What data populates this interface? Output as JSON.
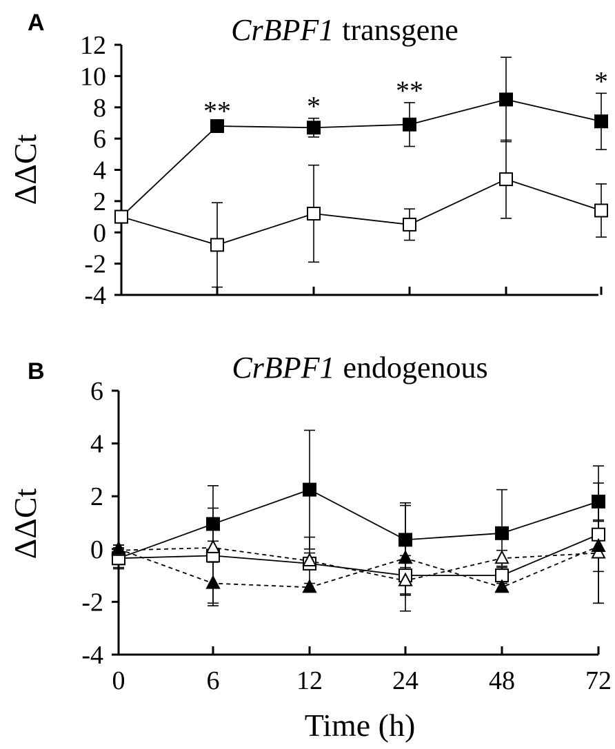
{
  "chart_data": [
    {
      "type": "line",
      "panel_label": "A",
      "title_gene": "CrBPF1",
      "title_suffix": "transgene",
      "ylabel": "ΔΔCt",
      "xlabel": "",
      "categories": [
        "0",
        "6",
        "12",
        "24",
        "48",
        "72"
      ],
      "ylim": [
        -4,
        12
      ],
      "yticks": [
        12,
        10,
        8,
        6,
        4,
        2,
        0,
        -2,
        -4
      ],
      "series": [
        {
          "name": "filled-square",
          "marker": "square-filled",
          "dashed": false,
          "values": [
            1.0,
            6.8,
            6.7,
            6.9,
            8.5,
            7.1
          ],
          "errors": [
            0.2,
            0.2,
            0.6,
            1.4,
            2.7,
            1.8
          ]
        },
        {
          "name": "open-square",
          "marker": "square-open",
          "dashed": false,
          "values": [
            1.0,
            -0.8,
            1.2,
            0.5,
            3.4,
            1.4
          ],
          "errors": [
            0.2,
            2.7,
            3.1,
            1.0,
            2.5,
            1.7
          ]
        }
      ],
      "annotations": [
        {
          "category": "6",
          "text": "**"
        },
        {
          "category": "12",
          "text": "*"
        },
        {
          "category": "24",
          "text": "**"
        },
        {
          "category": "72",
          "text": "*"
        }
      ]
    },
    {
      "type": "line",
      "panel_label": "B",
      "title_gene": "CrBPF1",
      "title_suffix": "endogenous",
      "ylabel": "ΔΔCt",
      "xlabel": "Time (h)",
      "categories": [
        "0",
        "6",
        "12",
        "24",
        "48",
        "72"
      ],
      "ylim": [
        -4,
        6
      ],
      "yticks": [
        6,
        4,
        2,
        0,
        -2,
        -4
      ],
      "series": [
        {
          "name": "filled-square",
          "marker": "square-filled",
          "dashed": false,
          "values": [
            -0.35,
            0.95,
            2.25,
            0.35,
            0.6,
            1.8
          ],
          "errors": [
            0.35,
            1.45,
            2.25,
            1.4,
            1.65,
            0.7
          ]
        },
        {
          "name": "open-square",
          "marker": "square-open",
          "dashed": false,
          "values": [
            -0.35,
            -0.25,
            -0.55,
            -1.0,
            -1.0,
            0.55
          ],
          "errors": [
            0.4,
            1.8,
            1.0,
            0.75,
            0.3,
            2.6
          ]
        },
        {
          "name": "open-triangle",
          "marker": "triangle-open",
          "dashed": true,
          "values": [
            -0.05,
            0.05,
            -0.45,
            -1.2,
            -0.35,
            -0.15
          ],
          "errors": [
            0.2,
            0.25,
            0.3,
            0.5,
            0.3,
            1.9
          ]
        },
        {
          "name": "filled-triangle",
          "marker": "triangle-filled",
          "dashed": true,
          "values": [
            0.0,
            -1.3,
            -1.45,
            -0.35,
            -1.45,
            0.1
          ],
          "errors": [
            0.15,
            0.85,
            0.15,
            2.0,
            0.15,
            0.95
          ]
        }
      ],
      "annotations": []
    }
  ]
}
